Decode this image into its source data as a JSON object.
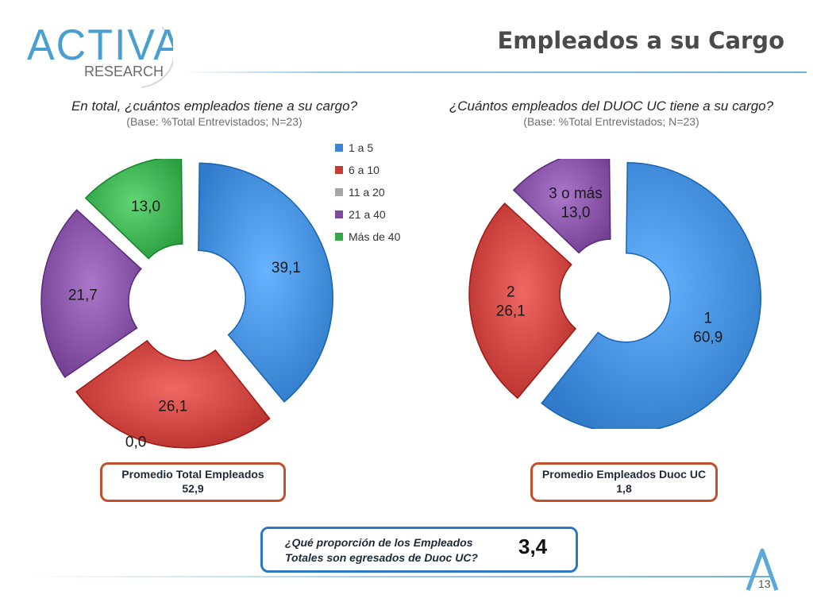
{
  "header": {
    "title": "Empleados  a su Cargo",
    "logo_text_main": "ACTIVA",
    "logo_text_sub": "RESEARCH"
  },
  "colors": {
    "blue": "#3b86d4",
    "red": "#c23b37",
    "gray": "#a6a6a6",
    "purple": "#7e4a9e",
    "green": "#35a84a",
    "accent_box_red": "#c0502b",
    "accent_box_blue": "#2b78c4"
  },
  "left": {
    "question": "En total, ¿cuántos empleados tiene a su cargo?",
    "base": "(Base: %Total Entrevistados; N=23)",
    "avg_label": "Promedio Total Empleados",
    "avg_value": "52,9"
  },
  "right": {
    "question": "¿Cuántos empleados  del DUOC UC  tiene a su cargo?",
    "base": "(Base: %Total Entrevistados; N=23)",
    "avg_label": "Promedio Empleados Duoc UC",
    "avg_value": "1,8"
  },
  "proportion": {
    "question": "¿Qué proporción de los Empleados Totales son egresados de Duoc UC?",
    "value": "3,4"
  },
  "page_number": "13",
  "chart_data": [
    {
      "type": "pie",
      "donut": true,
      "exploded": true,
      "categories": [
        "1 a 5",
        "6 a 10",
        "11 a 20",
        "21 a 40",
        "Más de 40"
      ],
      "values": [
        39.1,
        26.1,
        0.0,
        21.7,
        13.0
      ],
      "labels": [
        "39,1",
        "26,1",
        "0,0",
        "21,7",
        "13,0"
      ],
      "series_colors": [
        "#3b86d4",
        "#c23b37",
        "#a6a6a6",
        "#7e4a9e",
        "#35a84a"
      ],
      "legend_position": "right",
      "title": "En total, ¿cuántos empleados tiene a su cargo?"
    },
    {
      "type": "pie",
      "donut": true,
      "exploded": true,
      "categories": [
        "1",
        "2",
        "3 o más"
      ],
      "values": [
        60.9,
        26.1,
        13.0
      ],
      "labels": [
        "1\n60,9",
        "2\n26,1",
        "3 o más\n13,0"
      ],
      "series_colors": [
        "#3b86d4",
        "#c23b37",
        "#7e4a9e"
      ],
      "legend_position": "none",
      "title": "¿Cuántos empleados  del DUOC UC  tiene a su cargo?"
    }
  ]
}
